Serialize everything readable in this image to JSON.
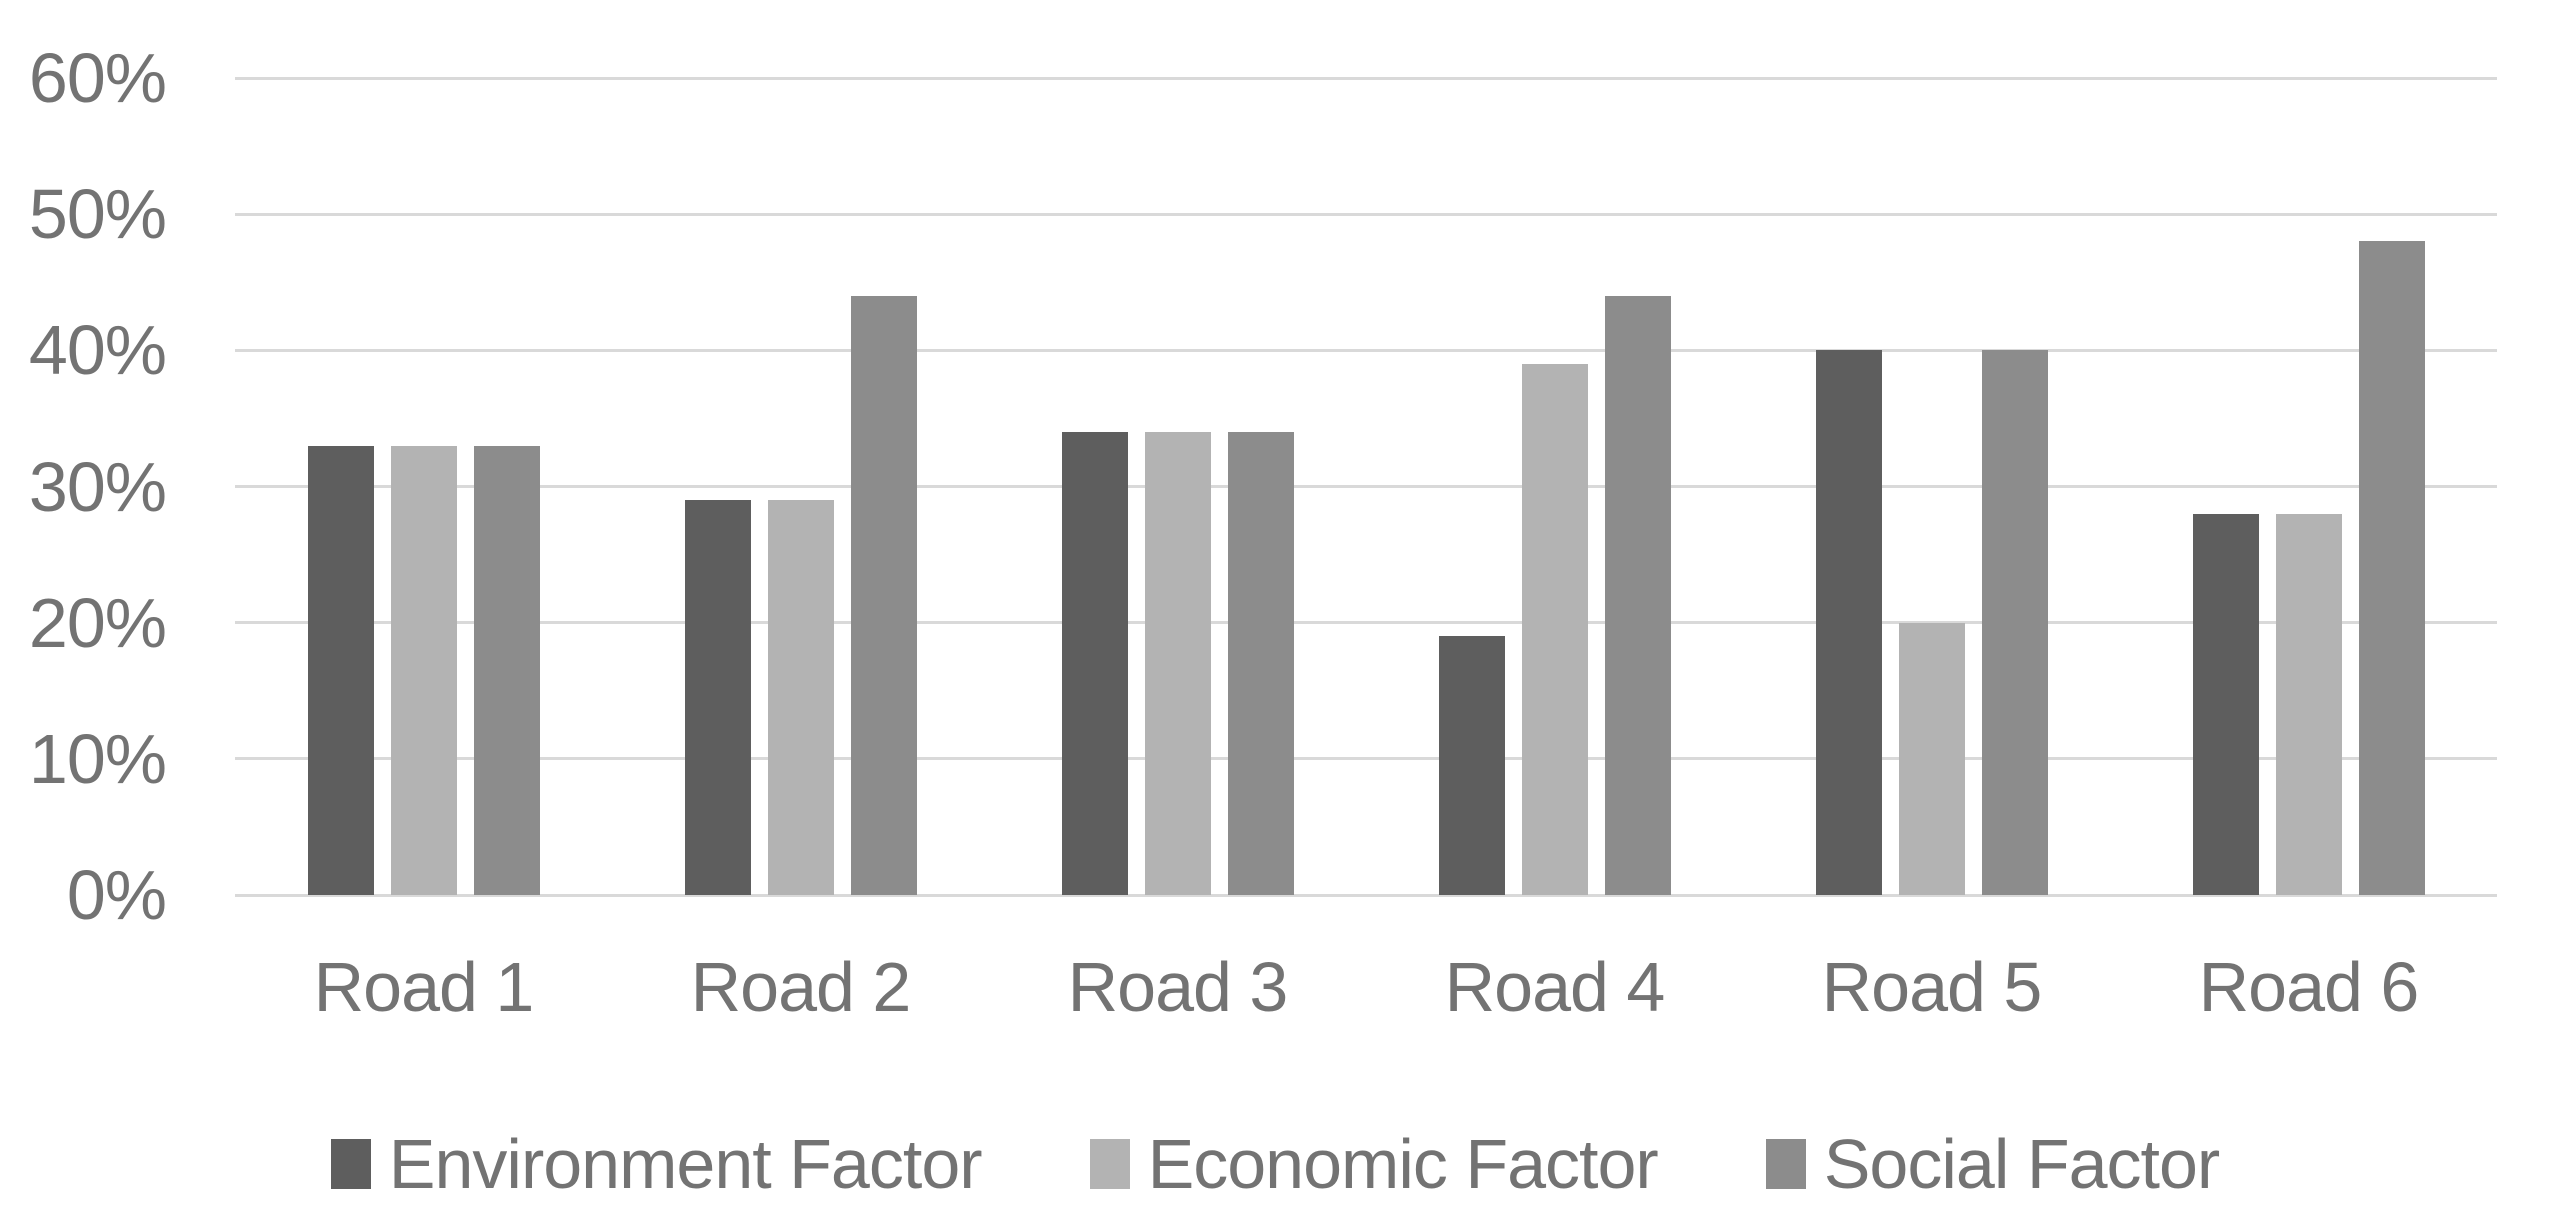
{
  "chart_data": {
    "type": "bar",
    "title": "",
    "categories": [
      "Road 1",
      "Road 2",
      "Road 3",
      "Road 4",
      "Road 5",
      "Road 6"
    ],
    "series": [
      {
        "name": "Environment Factor",
        "color": "#5e5e5e",
        "values": [
          33,
          29,
          34,
          19,
          40,
          28
        ]
      },
      {
        "name": "Economic Factor",
        "color": "#b3b3b3",
        "values": [
          33,
          29,
          34,
          39,
          20,
          28
        ]
      },
      {
        "name": "Social Factor",
        "color": "#8c8c8c",
        "values": [
          33,
          44,
          34,
          44,
          40,
          48
        ]
      }
    ],
    "y_axis": {
      "tick_labels": [
        "0%",
        "10%",
        "20%",
        "30%",
        "40%",
        "50%",
        "60%"
      ],
      "min": 0,
      "max": 60,
      "step": 10,
      "unit": "%"
    },
    "x_axis": {
      "label": ""
    },
    "grid": true,
    "legend_position": "bottom",
    "legend_entries": [
      "Environment Factor",
      "Economic Factor",
      "Social Factor"
    ]
  },
  "colors": {
    "background": "#ffffff",
    "gridline": "#d9d9d9",
    "axis_text": "#737373",
    "legend_text": "#737373"
  }
}
